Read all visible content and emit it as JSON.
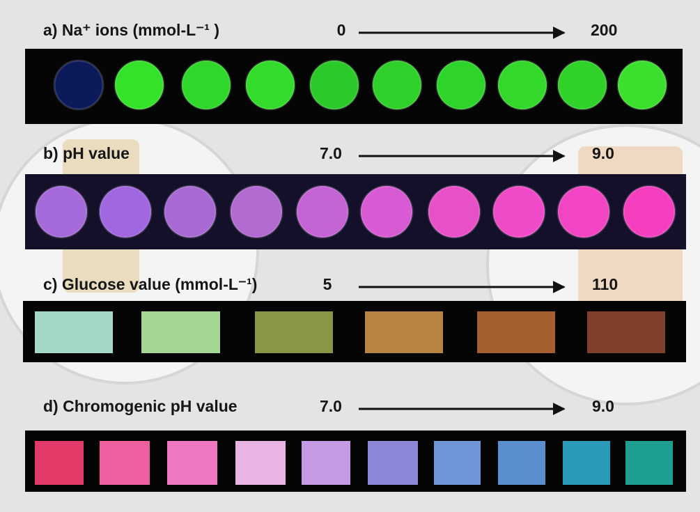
{
  "panels": [
    {
      "label": "a) Na⁺ ions (mmol-L⁻¹ )",
      "start": "0",
      "end": "200",
      "shape": "circle",
      "colors": [
        "#0c1a5c",
        "#35e22a",
        "#2fd72a",
        "#33dc2b",
        "#2cc92a",
        "#30d02a",
        "#2fd42b",
        "#33d82b",
        "#30d22a",
        "#3ae02d"
      ]
    },
    {
      "label": "b) pH value",
      "start": "7.0",
      "end": "9.0",
      "shape": "circle",
      "colors": [
        "#a46adc",
        "#a067e0",
        "#a86ad2",
        "#b06ad0",
        "#c463d4",
        "#d85ad4",
        "#e850c8",
        "#ef4bc8",
        "#f245c4",
        "#f53fbe"
      ]
    },
    {
      "label": "c) Glucose value (mmol-L⁻¹)",
      "start": "5",
      "end": "110",
      "shape": "rect",
      "colors": [
        "#a2d8c4",
        "#a6d694",
        "#8b9546",
        "#b68440",
        "#a65f2e",
        "#7f3f2a"
      ]
    },
    {
      "label": "d) Chromogenic pH value",
      "start": "7.0",
      "end": "9.0",
      "shape": "rect",
      "colors": [
        "#e33b68",
        "#ee5fa0",
        "#ef78c1",
        "#e9b3e4",
        "#c49ae4",
        "#8c86d8",
        "#6f95d9",
        "#5b8ecf",
        "#2a9abb",
        "#1f9e92"
      ]
    }
  ]
}
